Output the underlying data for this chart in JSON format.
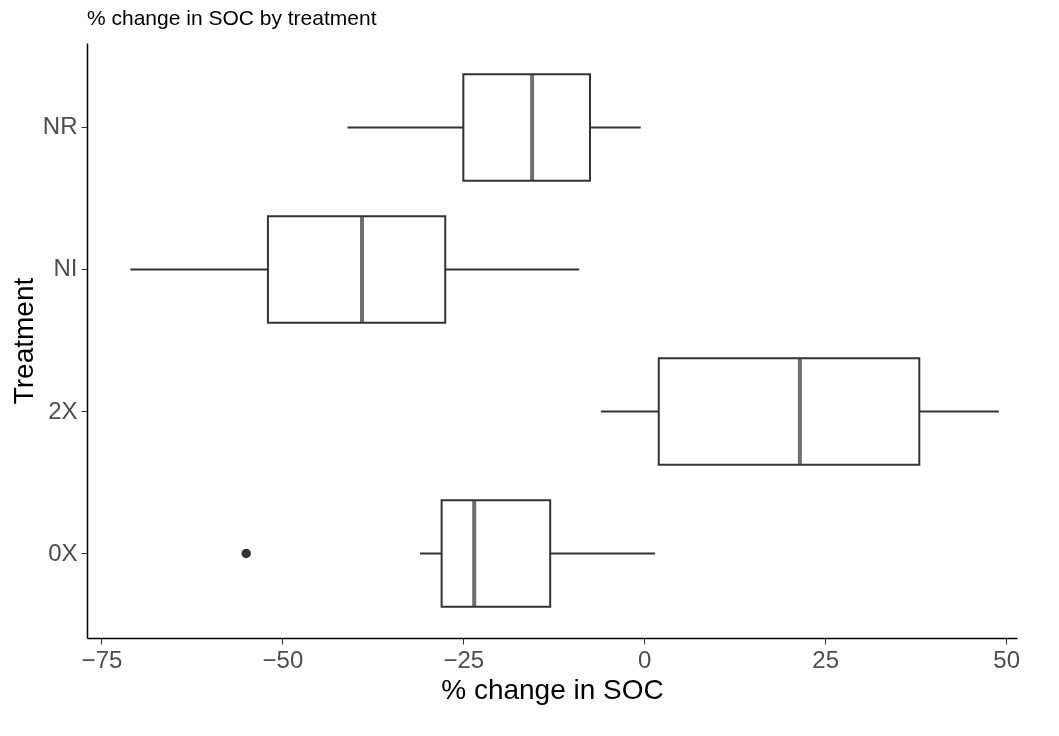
{
  "chart_data": {
    "type": "box",
    "title": "% change in SOC by treatment",
    "xlabel": "% change in SOC",
    "ylabel": "Treatment",
    "orientation": "horizontal",
    "categories": [
      "NR",
      "NI",
      "2X",
      "0X"
    ],
    "boxes": [
      {
        "low": -41,
        "q1": -25,
        "median": -15.5,
        "q3": -7.5,
        "high": -0.5
      },
      {
        "low": -71,
        "q1": -52,
        "median": -39,
        "q3": -27.5,
        "high": -9
      },
      {
        "low": -6,
        "q1": 2,
        "median": 21.5,
        "q3": 38,
        "high": 49
      },
      {
        "low": -31,
        "q1": -28,
        "median": -23.5,
        "q3": -13,
        "high": 1.5,
        "outliers": [
          -55
        ]
      }
    ],
    "xlim": [
      -77,
      51.5
    ],
    "xticks": [
      -75,
      -50,
      -25,
      0,
      25,
      50
    ]
  }
}
